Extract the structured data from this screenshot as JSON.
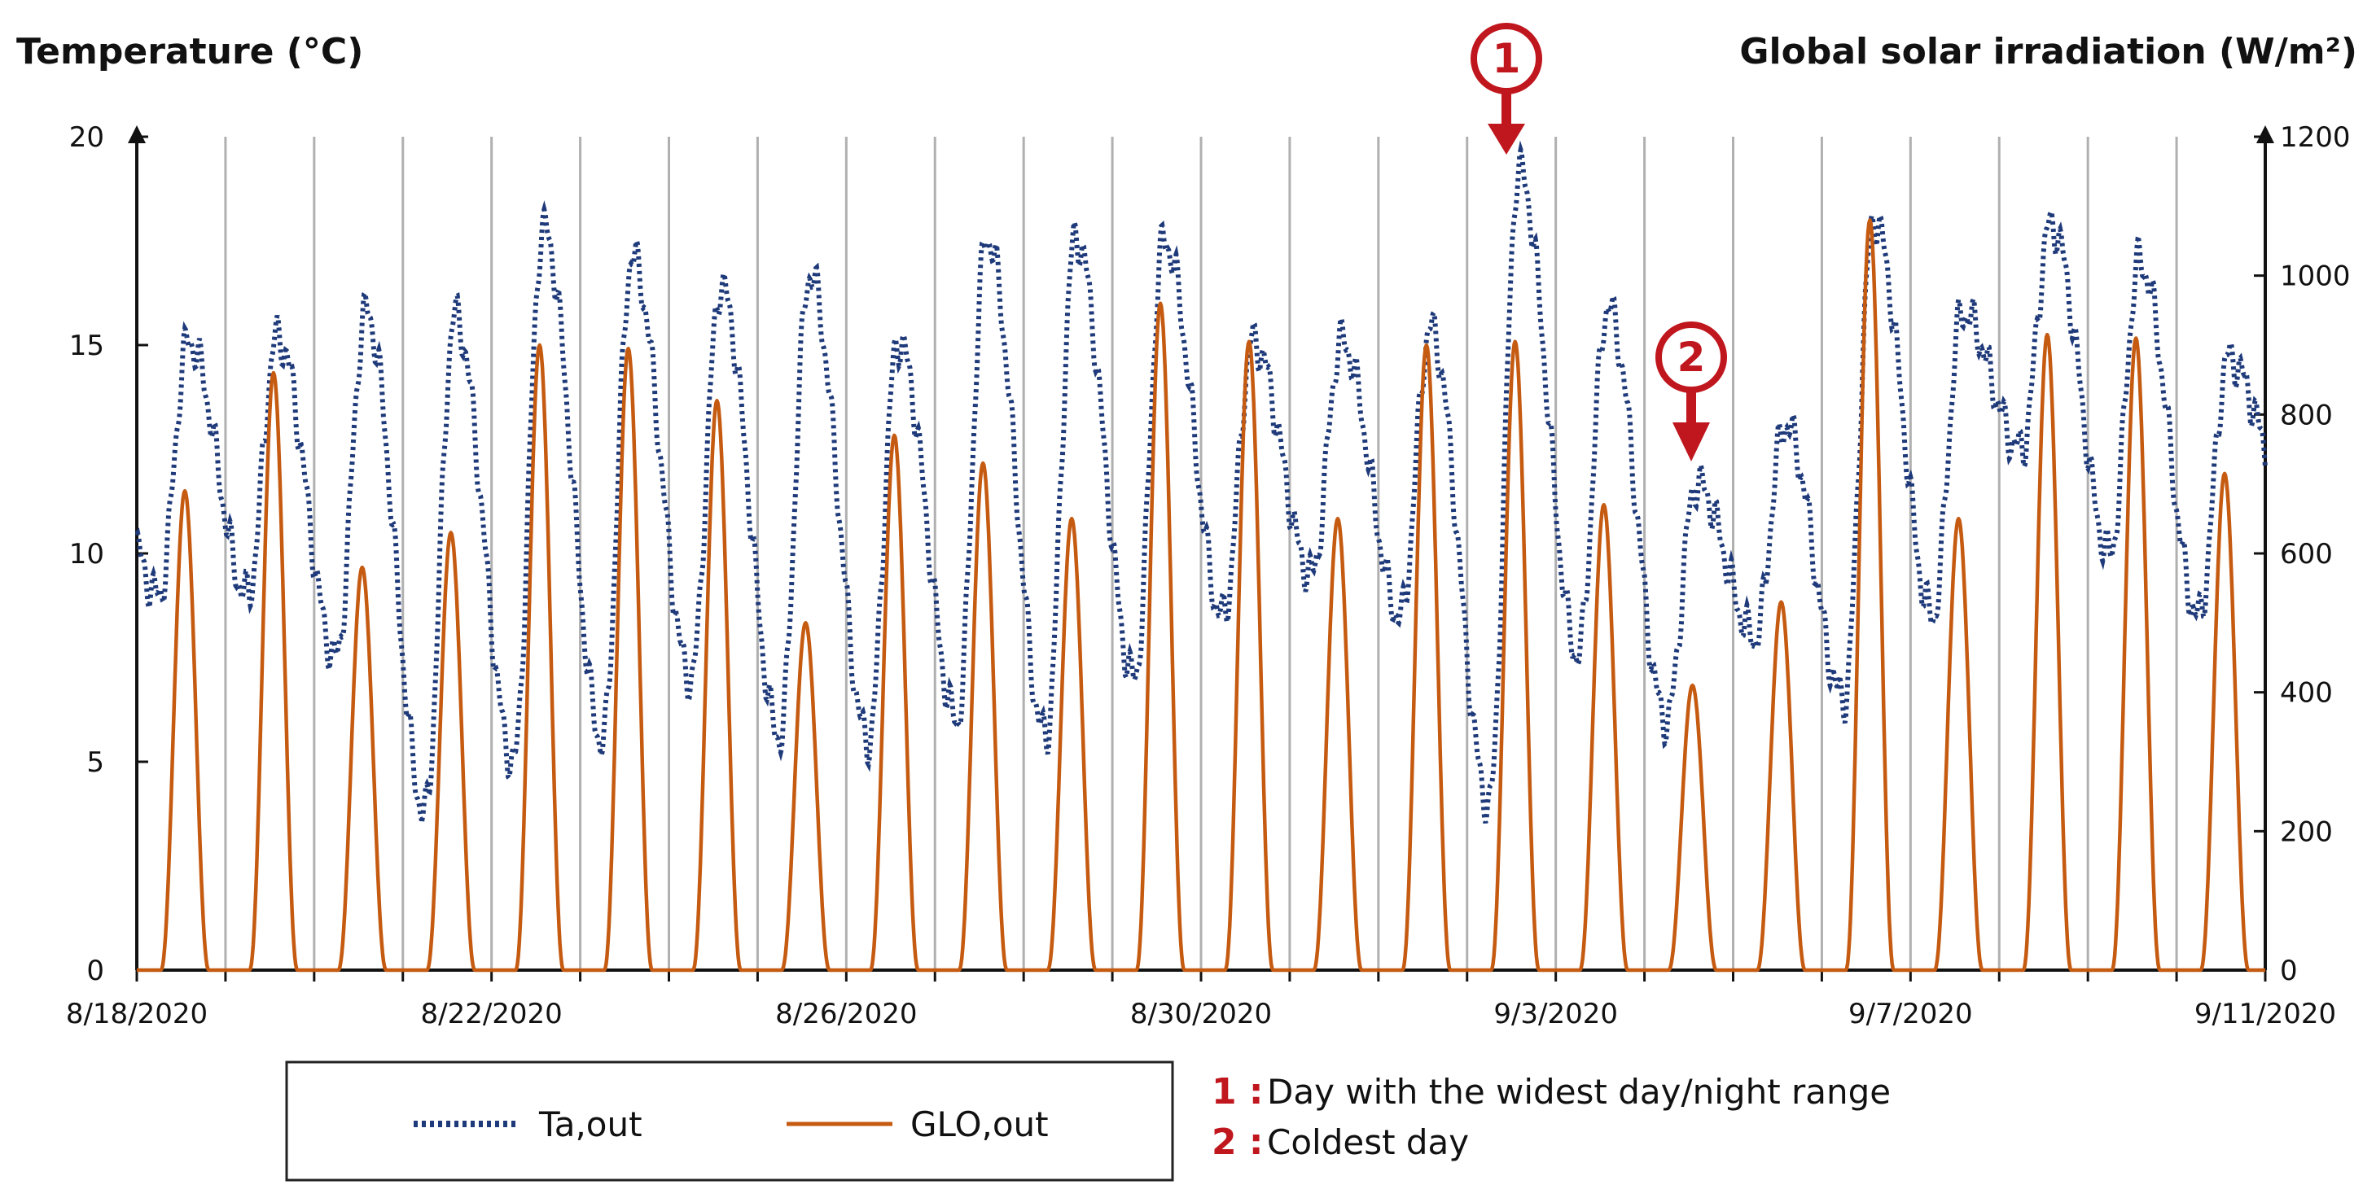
{
  "chart_data": {
    "type": "line",
    "y_left_label": "Temperature (°C)",
    "y_right_label": "Global solar irradiation (W/m²)",
    "y_left_range": [
      0,
      20
    ],
    "y_left_ticks": [
      "0",
      "5",
      "10",
      "15",
      "20"
    ],
    "y_right_range": [
      0,
      1200
    ],
    "y_right_ticks": [
      "0",
      "200",
      "400",
      "600",
      "800",
      "1000",
      "1200"
    ],
    "x_range_days": [
      0,
      24
    ],
    "x_tick_labels": [
      {
        "day": 0,
        "label": "8/18/2020"
      },
      {
        "day": 4,
        "label": "8/22/2020"
      },
      {
        "day": 8,
        "label": "8/26/2020"
      },
      {
        "day": 12,
        "label": "8/30/2020"
      },
      {
        "day": 16,
        "label": "9/3/2020"
      },
      {
        "day": 20,
        "label": "9/7/2020"
      },
      {
        "day": 24,
        "label": "9/11/2020"
      }
    ],
    "grid": "vertical daily lines",
    "series": [
      {
        "name": "Ta,out",
        "style": "dotted",
        "color": "#1f3a7a",
        "axis": "left",
        "daily_min": [
          9.0,
          9.0,
          7.5,
          3.8,
          5.0,
          5.5,
          7.0,
          5.6,
          5.5,
          6.0,
          5.6,
          7.0,
          8.5,
          9.5,
          8.5,
          4.0,
          7.6,
          6.0,
          8.0,
          6.5,
          8.5,
          12.5,
          10.0,
          8.5,
          11.5
        ],
        "daily_max": [
          15.1,
          15.2,
          15.8,
          15.7,
          17.8,
          17.1,
          16.4,
          16.7,
          15.1,
          17.6,
          17.6,
          17.5,
          15.1,
          15.1,
          15.4,
          19.2,
          15.9,
          11.7,
          13.1,
          18.0,
          15.8,
          17.9,
          17.0,
          14.7
        ]
      },
      {
        "name": "GLO,out",
        "style": "solid",
        "color": "#c55a11",
        "axis": "right",
        "daily_peak": [
          690,
          860,
          580,
          630,
          900,
          895,
          820,
          500,
          770,
          730,
          650,
          960,
          905,
          650,
          900,
          905,
          670,
          410,
          530,
          1080,
          650,
          915,
          910,
          715
        ]
      }
    ],
    "legend": {
      "position": "bottom-left",
      "entries": [
        "Ta,out",
        "GLO,out"
      ]
    },
    "annotations": [
      {
        "marker": "1",
        "day": 15.5,
        "text": "Day with the widest day/night range"
      },
      {
        "marker": "2",
        "day": 17.5,
        "text": "Coldest day"
      }
    ]
  },
  "legend_labels": {
    "ta": "Ta,out",
    "glo": "GLO,out"
  },
  "annotation_text": {
    "num1": "1 :",
    "text1": "Day with the widest day/night range",
    "num2": "2 :",
    "text2": "Coldest day",
    "marker1": "1",
    "marker2": "2"
  },
  "colors": {
    "temperature": "#1f3a7a",
    "irradiation": "#c55a11",
    "annotation": "#c0161d",
    "grid": "#b0b0b0"
  }
}
